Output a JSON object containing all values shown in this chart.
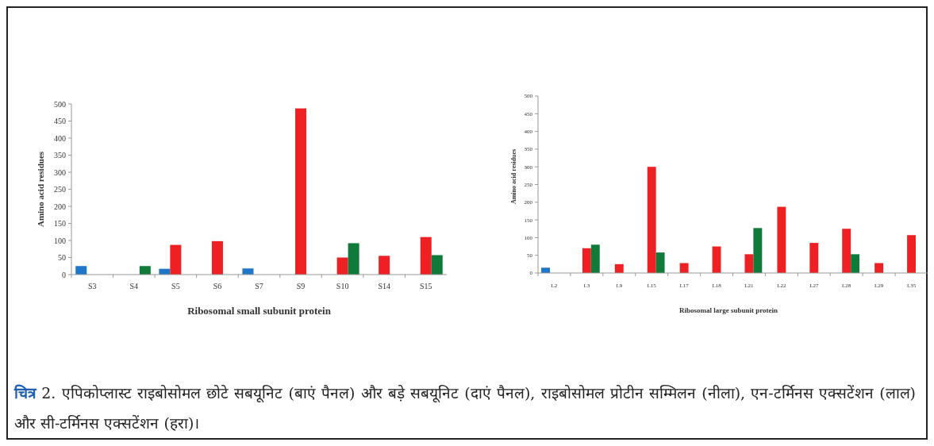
{
  "chart_data": [
    {
      "type": "bar",
      "xlabel": "Ribosomal small subunit protein",
      "ylabel": "Amino acid residues",
      "categories": [
        "S3",
        "S4",
        "S5",
        "S6",
        "S7",
        "S9",
        "S10",
        "S14",
        "S15"
      ],
      "series": [
        {
          "color": "#1f77c8",
          "values": [
            25,
            null,
            17,
            null,
            18,
            null,
            null,
            null,
            null
          ]
        },
        {
          "color": "#ee2024",
          "values": [
            null,
            null,
            87,
            98,
            null,
            487,
            50,
            55,
            110
          ]
        },
        {
          "color": "#0f7a3a",
          "values": [
            null,
            25,
            null,
            null,
            null,
            null,
            92,
            null,
            57
          ]
        }
      ],
      "ylim": [
        0,
        500
      ],
      "yticks": [
        0,
        50,
        100,
        150,
        200,
        250,
        300,
        350,
        400,
        450,
        500
      ],
      "grid": false,
      "annotations": [
        "चित्र 2. एपिकोप्लास्ट राइबोसोमल छोटे सबयूनिट (बाएं पैनल) और बड़े सबयूनिट (दाएं पैनल), राइबोसोमल प्रोटीन सम्मिलन (नीला), एन-टर्मिनस एक्सटेंशन (लाल) और सी-टर्मिनस एक्सटेंशन (हरा)।"
      ]
    },
    {
      "type": "bar",
      "xlabel": "Ribosomal large subunit protein",
      "ylabel": "Amino acid residues",
      "categories": [
        "L2",
        "L3",
        "L9",
        "L15",
        "L17",
        "L18",
        "L21",
        "L22",
        "L27",
        "L28",
        "L29",
        "L35"
      ],
      "series": [
        {
          "color": "#1f77c8",
          "values": [
            15,
            null,
            null,
            null,
            null,
            null,
            null,
            null,
            null,
            null,
            null,
            null
          ]
        },
        {
          "color": "#ee2024",
          "values": [
            null,
            70,
            25,
            300,
            28,
            75,
            53,
            187,
            85,
            125,
            28,
            107
          ]
        },
        {
          "color": "#0f7a3a",
          "values": [
            null,
            80,
            null,
            58,
            null,
            null,
            127,
            null,
            null,
            53,
            null,
            null
          ]
        }
      ],
      "ylim": [
        0,
        500
      ],
      "yticks": [
        0,
        50,
        100,
        150,
        200,
        250,
        300,
        350,
        400,
        450,
        500
      ],
      "grid": false
    }
  ]
}
